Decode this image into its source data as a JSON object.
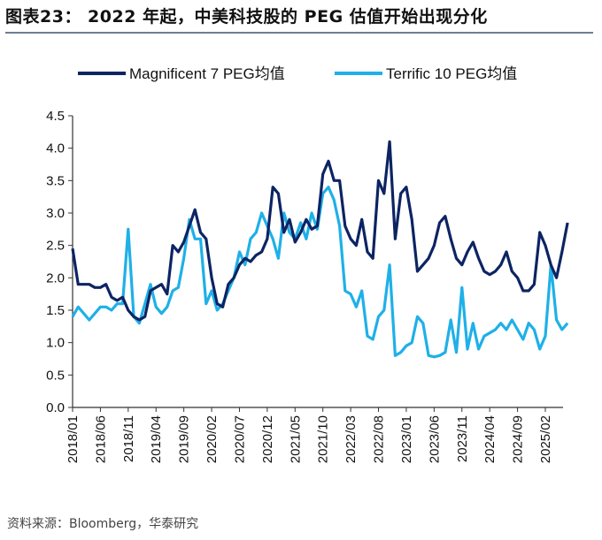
{
  "title": "图表23：  2022 年起，中美科技股的 PEG 估值开始出现分化",
  "source": "资料来源：Bloomberg，华泰研究",
  "chart_data": {
    "type": "line",
    "title": "",
    "xlabel": "",
    "ylabel": "",
    "ylim": [
      0,
      4.5
    ],
    "yticks": [
      "0.0",
      "0.5",
      "1.0",
      "1.5",
      "2.0",
      "2.5",
      "3.0",
      "3.5",
      "4.0",
      "4.5"
    ],
    "xticks": [
      "2018/01",
      "2018/06",
      "2018/11",
      "2019/04",
      "2019/09",
      "2020/02",
      "2020/07",
      "2020/12",
      "2021/05",
      "2021/10",
      "2022/03",
      "2022/08",
      "2023/01",
      "2023/06",
      "2023/11",
      "2024/04",
      "2024/09",
      "2025/02"
    ],
    "x_start": "2018/01",
    "x_frequency": "monthly",
    "grid": false,
    "legend_position": "top",
    "series": [
      {
        "name": "Magnificent 7 PEG均值",
        "color": "#0d2463",
        "values": [
          2.45,
          1.9,
          1.9,
          1.9,
          1.85,
          1.85,
          1.9,
          1.7,
          1.65,
          1.7,
          1.5,
          1.4,
          1.35,
          1.4,
          1.8,
          1.85,
          1.9,
          1.75,
          2.5,
          2.4,
          2.55,
          2.8,
          3.05,
          2.7,
          2.6,
          2.0,
          1.6,
          1.55,
          1.9,
          2.0,
          2.2,
          2.3,
          2.25,
          2.35,
          2.4,
          2.6,
          3.4,
          3.3,
          2.7,
          2.9,
          2.55,
          2.7,
          2.9,
          2.75,
          2.8,
          3.6,
          3.8,
          3.5,
          3.5,
          2.8,
          2.6,
          2.5,
          2.9,
          2.4,
          2.3,
          3.5,
          3.3,
          4.1,
          2.6,
          3.3,
          3.4,
          2.9,
          2.1,
          2.2,
          2.3,
          2.5,
          2.85,
          2.95,
          2.6,
          2.3,
          2.2,
          2.4,
          2.55,
          2.3,
          2.1,
          2.05,
          2.1,
          2.2,
          2.4,
          2.1,
          2.0,
          1.8,
          1.8,
          1.9,
          2.7,
          2.5,
          2.2,
          2.0,
          2.4,
          2.85
        ]
      },
      {
        "name": "Terrific 10 PEG均值",
        "color": "#1fb0e8",
        "values": [
          1.4,
          1.55,
          1.45,
          1.35,
          1.45,
          1.55,
          1.55,
          1.5,
          1.6,
          1.6,
          2.75,
          1.4,
          1.3,
          1.6,
          1.9,
          1.55,
          1.45,
          1.55,
          1.8,
          1.85,
          2.3,
          2.9,
          2.6,
          2.6,
          1.6,
          1.8,
          1.5,
          1.6,
          1.8,
          2.0,
          2.4,
          2.2,
          2.6,
          2.7,
          3.0,
          2.8,
          2.6,
          2.3,
          3.0,
          2.7,
          2.6,
          2.85,
          2.6,
          3.0,
          2.75,
          3.3,
          3.4,
          3.2,
          2.8,
          1.8,
          1.75,
          1.55,
          1.8,
          1.1,
          1.05,
          1.4,
          1.5,
          2.2,
          0.8,
          0.85,
          0.95,
          1.0,
          1.4,
          1.3,
          0.8,
          0.78,
          0.8,
          0.85,
          1.35,
          0.85,
          1.85,
          0.9,
          1.3,
          0.9,
          1.1,
          1.15,
          1.2,
          1.3,
          1.2,
          1.35,
          1.2,
          1.05,
          1.3,
          1.2,
          0.9,
          1.1,
          2.2,
          1.35,
          1.2,
          1.3
        ]
      }
    ]
  }
}
